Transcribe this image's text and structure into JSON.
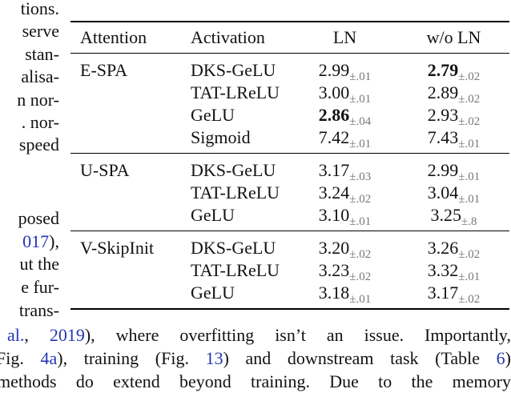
{
  "left_column": {
    "fragments_top": [
      "tions.",
      "serve",
      "stan-",
      "alisa-",
      "n nor-",
      ". nor-",
      "speed"
    ],
    "fragments_bottom": {
      "line1": "posed",
      "citation": {
        "link": "017",
        "after": "),"
      },
      "line3": "ut the",
      "line4": "e fur-",
      "line5": "trans-"
    }
  },
  "table": {
    "headers": {
      "attention": "Attention",
      "activation": "Activation",
      "ln": "LN",
      "wo_ln": "w/o LN"
    },
    "groups": [
      {
        "attention": "E-SPA",
        "rows": [
          {
            "activation": "DKS-GeLU",
            "ln": {
              "v": "2.99",
              "s": "±.01"
            },
            "wo": {
              "v": "2.79",
              "s": "±.02",
              "bold": true
            }
          },
          {
            "activation": "TAT-LReLU",
            "ln": {
              "v": "3.00",
              "s": "±.01"
            },
            "wo": {
              "v": "2.89",
              "s": "±.02"
            }
          },
          {
            "activation": "GeLU",
            "ln": {
              "v": "2.86",
              "s": "±.04",
              "bold": true
            },
            "wo": {
              "v": "2.93",
              "s": "±.02"
            }
          },
          {
            "activation": "Sigmoid",
            "ln": {
              "v": "7.42",
              "s": "±.01"
            },
            "wo": {
              "v": "7.43",
              "s": "±.01"
            }
          }
        ]
      },
      {
        "attention": "U-SPA",
        "rows": [
          {
            "activation": "DKS-GeLU",
            "ln": {
              "v": "3.17",
              "s": "±.03"
            },
            "wo": {
              "v": "2.99",
              "s": "±.01"
            }
          },
          {
            "activation": "TAT-LReLU",
            "ln": {
              "v": "3.24",
              "s": "±.02"
            },
            "wo": {
              "v": "3.04",
              "s": "±.01"
            }
          },
          {
            "activation": "GeLU",
            "ln": {
              "v": "3.10",
              "s": "±.01"
            },
            "wo": {
              "v": "3.25",
              "s": "±.8"
            }
          }
        ]
      },
      {
        "attention": "V-SkipInit",
        "rows": [
          {
            "activation": "DKS-GeLU",
            "ln": {
              "v": "3.20",
              "s": "±.02"
            },
            "wo": {
              "v": "3.26",
              "s": "±.02"
            }
          },
          {
            "activation": "TAT-LReLU",
            "ln": {
              "v": "3.23",
              "s": "±.02"
            },
            "wo": {
              "v": "3.32",
              "s": "±.01"
            }
          },
          {
            "activation": "GeLU",
            "ln": {
              "v": "3.18",
              "s": "±.01"
            },
            "wo": {
              "v": "3.17",
              "s": "±.02"
            }
          }
        ]
      }
    ]
  },
  "bottom_paragraph": {
    "line1": {
      "link1": "al.",
      "t1": ", ",
      "link2": "2019",
      "t2": "), where overfitting isn’t an issue.  Importantly,"
    },
    "line2": {
      "t0": "Fig. ",
      "link1": "4a",
      "t1": "), training (Fig. ",
      "link2": "13",
      "t2": ") and downstream task (Table ",
      "link3": "6",
      "t3": ")"
    },
    "line3": "methods do extend beyond training.  Due to the memory"
  },
  "colors": {
    "link_blue": "#2336b4",
    "subscript_gray": "#787878"
  }
}
